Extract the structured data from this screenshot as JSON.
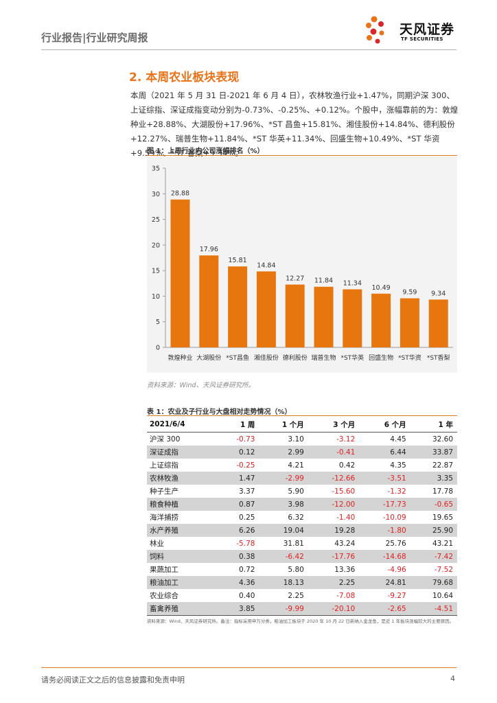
{
  "header": {
    "title": "行业报告|行业研究周报",
    "logo_cn": "天风证券",
    "logo_en": "TF SECURITIES"
  },
  "section": {
    "title": "2. 本周农业板块表现",
    "paragraph": "本周（2021 年 5 月 31 日-2021 年 6 月 4 日），农林牧渔行业+1.47%，同期沪深 300、上证综指、深证成指变动分别为-0.73%、-0.25%、+0.12%。个股中，涨幅靠前的为：敦煌种业+28.88%、大湖股份+17.96%、*ST 昌鱼+15.81%、湘佳股份+14.84%、德利股份+12.27%、瑞普生物+11.84%、*ST 华英+11.34%、回盛生物+10.49%、*ST 华资+9.59%、*ST 香梨+9.34%。"
  },
  "figure": {
    "title": "图 1：上周行业内公司涨幅排名（%）",
    "source": "资料来源：Wind、天风证券研究所。"
  },
  "chart_data": {
    "type": "bar",
    "title": "图 1：上周行业内公司涨幅排名（%）",
    "categories": [
      "敦煌种业",
      "大湖股份",
      "*ST昌鱼",
      "湘佳股份",
      "德利股份",
      "瑞普生物",
      "*ST华英",
      "回盛生物",
      "*ST华资",
      "*ST香梨"
    ],
    "values": [
      28.88,
      17.96,
      15.81,
      14.84,
      12.27,
      11.84,
      11.34,
      10.49,
      9.59,
      9.34
    ],
    "value_labels": [
      "28.88",
      "17.96",
      "15.81",
      "14.84",
      "12.27",
      "11.84",
      "11.34",
      "10.49",
      "9.59",
      "9.34"
    ],
    "yticks": [
      "0",
      "5",
      "10",
      "15",
      "20",
      "25",
      "30",
      "35"
    ],
    "ylim": [
      0,
      35
    ],
    "bar_color": "#e8760f",
    "grid": false,
    "xlabel": "",
    "ylabel": ""
  },
  "table": {
    "title": "表 1：农业及子行业与大盘相对走势情况（%）",
    "headers": [
      "2021/6/4",
      "1 周",
      "1 个月",
      "3 个月",
      "6 个月",
      "1 年"
    ],
    "rows": [
      [
        "沪深 300",
        "-0.73",
        "3.10",
        "-3.12",
        "4.45",
        "32.60"
      ],
      [
        "深证成指",
        "0.12",
        "2.99",
        "-0.41",
        "6.44",
        "33.87"
      ],
      [
        "上证综指",
        "-0.25",
        "4.21",
        "0.42",
        "4.35",
        "22.87"
      ],
      [
        "农林牧渔",
        "1.47",
        "-2.99",
        "-12.66",
        "-3.51",
        "3.35"
      ],
      [
        "种子生产",
        "3.37",
        "5.90",
        "-15.60",
        "-1.32",
        "17.78"
      ],
      [
        "粮食种植",
        "0.87",
        "3.98",
        "-12.00",
        "-17.73",
        "-0.65"
      ],
      [
        "海洋捕捞",
        "0.25",
        "6.32",
        "-1.40",
        "-10.09",
        "19.65"
      ],
      [
        "水产养殖",
        "6.26",
        "19.04",
        "19.28",
        "-1.80",
        "25.90"
      ],
      [
        "林业",
        "-5.78",
        "31.81",
        "43.24",
        "25.76",
        "43.21"
      ],
      [
        "饲料",
        "0.38",
        "-6.42",
        "-17.76",
        "-14.68",
        "-7.42"
      ],
      [
        "果蔬加工",
        "0.72",
        "5.80",
        "13.36",
        "-4.96",
        "-7.52"
      ],
      [
        "粮油加工",
        "4.36",
        "18.13",
        "2.25",
        "24.81",
        "79.68"
      ],
      [
        "农业综合",
        "0.40",
        "2.25",
        "-7.08",
        "-9.27",
        "10.64"
      ],
      [
        "畜禽养殖",
        "3.85",
        "-9.99",
        "-20.10",
        "-2.65",
        "-4.51"
      ]
    ],
    "shaded_rows": [
      1,
      3,
      5,
      7,
      9,
      11,
      13
    ],
    "negative_color": "#e02020",
    "source": "资料来源：Wind、天风证券研究所。备注：指标采用申万分类，粮油加工板块于 2020 年 10 月 22 日新纳入金龙鱼，是近 1 年板块涨幅较大的主要原因。"
  },
  "footer": {
    "disclaimer": "请务必阅读正文之后的信息披露和免责申明",
    "page_number": "4"
  },
  "colors": {
    "accent": "#e8731a"
  }
}
